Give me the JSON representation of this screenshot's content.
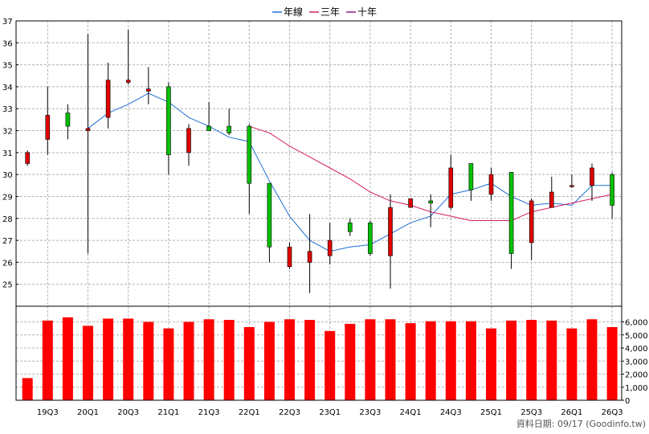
{
  "legend": [
    {
      "label": "年線",
      "color": "#1f6fd6"
    },
    {
      "label": "三年",
      "color": "#d61f66"
    },
    {
      "label": "十年",
      "color": "#8a1f8a"
    }
  ],
  "footer": {
    "source": "資料日期: 09/17  (Goodinfo.tw)"
  },
  "colors": {
    "up": "#e00000",
    "down": "#00c000",
    "volume": "#ff0000",
    "grid": "#b4b4b4"
  },
  "chart_data": {
    "type": "candlestick+line+bar",
    "x_tick_labels": [
      "19Q3",
      "20Q1",
      "20Q3",
      "21Q1",
      "21Q3",
      "22Q1",
      "22Q3",
      "23Q1",
      "23Q3",
      "24Q1",
      "24Q3",
      "25Q1",
      "25Q3",
      "26Q1",
      "26Q3"
    ],
    "price_axis": {
      "ylim": [
        24,
        37
      ],
      "ticks": [
        25,
        26,
        27,
        28,
        29,
        30,
        31,
        32,
        33,
        34,
        35,
        36,
        37
      ],
      "grid": true
    },
    "volume_axis": {
      "ylim": [
        0,
        7200
      ],
      "ticks": [
        0,
        1000,
        2000,
        3000,
        4000,
        5000,
        6000
      ],
      "tick_labels": [
        "0",
        "1,000",
        "2,000",
        "3,000",
        "4,000",
        "5,000",
        "6,000"
      ],
      "grid": true
    },
    "candles": [
      {
        "o": 30.5,
        "h": 31.1,
        "l": 30.4,
        "c": 31.0
      },
      {
        "o": 31.6,
        "h": 34.0,
        "l": 30.9,
        "c": 32.7
      },
      {
        "o": 32.8,
        "h": 33.2,
        "l": 31.6,
        "c": 32.2
      },
      {
        "o": 32.0,
        "h": 36.4,
        "l": 26.4,
        "c": 32.1
      },
      {
        "o": 32.6,
        "h": 35.1,
        "l": 32.1,
        "c": 34.3
      },
      {
        "o": 34.2,
        "h": 36.6,
        "l": 34.1,
        "c": 34.3
      },
      {
        "o": 33.8,
        "h": 34.9,
        "l": 33.2,
        "c": 33.9
      },
      {
        "o": 34.0,
        "h": 34.2,
        "l": 30.0,
        "c": 30.9
      },
      {
        "o": 31.0,
        "h": 32.3,
        "l": 30.4,
        "c": 32.1
      },
      {
        "o": 32.2,
        "h": 33.3,
        "l": 32.0,
        "c": 32.0
      },
      {
        "o": 32.2,
        "h": 33.0,
        "l": 31.8,
        "c": 31.9
      },
      {
        "o": 32.2,
        "h": 32.3,
        "l": 28.2,
        "c": 29.6
      },
      {
        "o": 29.6,
        "h": 29.6,
        "l": 26.0,
        "c": 26.7
      },
      {
        "o": 25.8,
        "h": 26.9,
        "l": 25.7,
        "c": 26.7
      },
      {
        "o": 26.0,
        "h": 28.2,
        "l": 24.6,
        "c": 26.5
      },
      {
        "o": 26.3,
        "h": 27.8,
        "l": 25.9,
        "c": 27.0
      },
      {
        "o": 27.8,
        "h": 28.0,
        "l": 27.2,
        "c": 27.4
      },
      {
        "o": 27.8,
        "h": 27.9,
        "l": 26.3,
        "c": 26.4
      },
      {
        "o": 26.3,
        "h": 29.1,
        "l": 24.8,
        "c": 28.5
      },
      {
        "o": 28.5,
        "h": 28.9,
        "l": 28.5,
        "c": 28.9
      },
      {
        "o": 28.8,
        "h": 29.1,
        "l": 27.6,
        "c": 28.7
      },
      {
        "o": 28.5,
        "h": 30.9,
        "l": 28.4,
        "c": 30.3
      },
      {
        "o": 30.5,
        "h": 30.5,
        "l": 28.8,
        "c": 29.3
      },
      {
        "o": 29.1,
        "h": 30.3,
        "l": 28.8,
        "c": 30.0
      },
      {
        "o": 30.1,
        "h": 30.1,
        "l": 25.7,
        "c": 26.4
      },
      {
        "o": 26.9,
        "h": 28.9,
        "l": 26.1,
        "c": 28.8
      },
      {
        "o": 28.5,
        "h": 29.9,
        "l": 28.5,
        "c": 29.2
      },
      {
        "o": 29.5,
        "h": 30.0,
        "l": 29.4,
        "c": 29.5
      },
      {
        "o": 29.5,
        "h": 30.5,
        "l": 28.8,
        "c": 30.3
      },
      {
        "o": 30.0,
        "h": 30.1,
        "l": 28.0,
        "c": 28.6
      }
    ],
    "series": [
      {
        "values": [
          null,
          null,
          null,
          32.1,
          32.8,
          33.2,
          33.7,
          33.3,
          32.6,
          32.2,
          31.7,
          31.5,
          29.7,
          28.1,
          27.0,
          26.5,
          26.7,
          26.8,
          27.3,
          27.8,
          28.1,
          29.1,
          29.3,
          29.6,
          29.0,
          28.6,
          28.7,
          28.6,
          29.5,
          29.5
        ]
      },
      {
        "values": [
          null,
          null,
          null,
          null,
          null,
          null,
          null,
          null,
          null,
          null,
          null,
          32.2,
          31.9,
          31.3,
          30.8,
          30.3,
          29.8,
          29.2,
          28.8,
          28.6,
          28.3,
          28.1,
          27.9,
          27.9,
          27.9,
          28.3,
          28.5,
          28.7,
          28.9,
          29.1
        ]
      }
    ],
    "volume": [
      1700,
      6100,
      6350,
      5700,
      6250,
      6250,
      6000,
      5500,
      6000,
      6200,
      6150,
      5600,
      6000,
      6200,
      6150,
      5300,
      5850,
      6200,
      6200,
      5900,
      6050,
      6050,
      6050,
      5500,
      6100,
      6150,
      6100,
      5500,
      6200,
      5600
    ]
  }
}
